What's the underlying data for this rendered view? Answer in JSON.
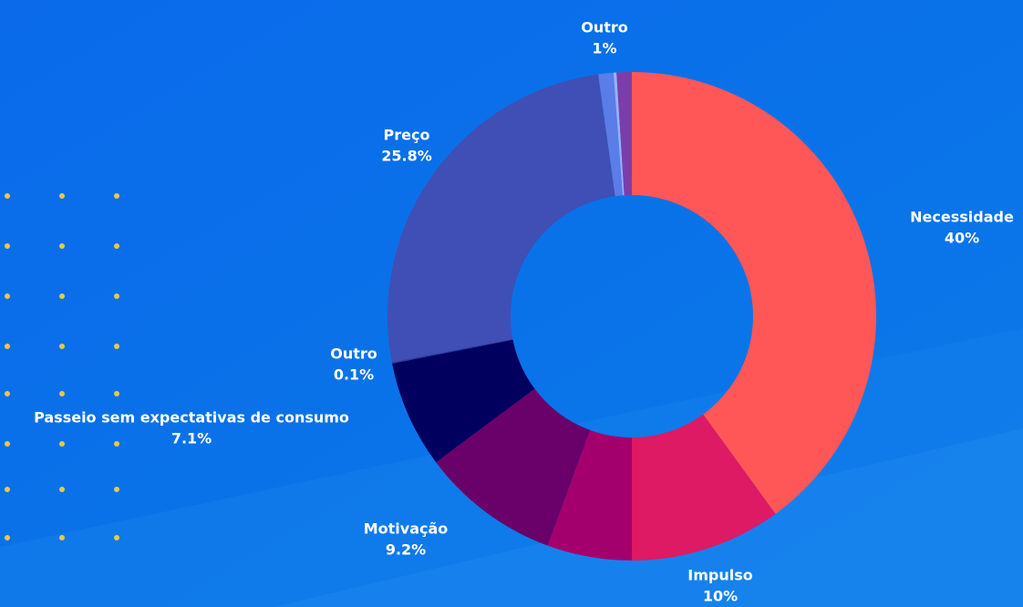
{
  "chart_data": {
    "type": "donut",
    "categories": [
      "Necessidade",
      "Impulso",
      null,
      "Motivação",
      "Passeio sem expectativas de consumo",
      "Outro",
      "Preço",
      null,
      null,
      "Outro"
    ],
    "values": [
      40,
      10,
      5.6,
      9.2,
      7.1,
      0.1,
      25.8,
      1.0,
      0.2,
      1
    ],
    "value_labels": [
      "40%",
      "10%",
      null,
      "9.2%",
      "7.1%",
      "0.1%",
      "25.8%",
      null,
      null,
      "1%"
    ],
    "colors": [
      "#ff5757",
      "#dd1a63",
      "#a3006e",
      "#6a0069",
      "#02005f",
      "#3a3a9a",
      "#3f4fb5",
      "#5a7de8",
      "#9ab0ff",
      "#7b3ea8"
    ]
  }
}
